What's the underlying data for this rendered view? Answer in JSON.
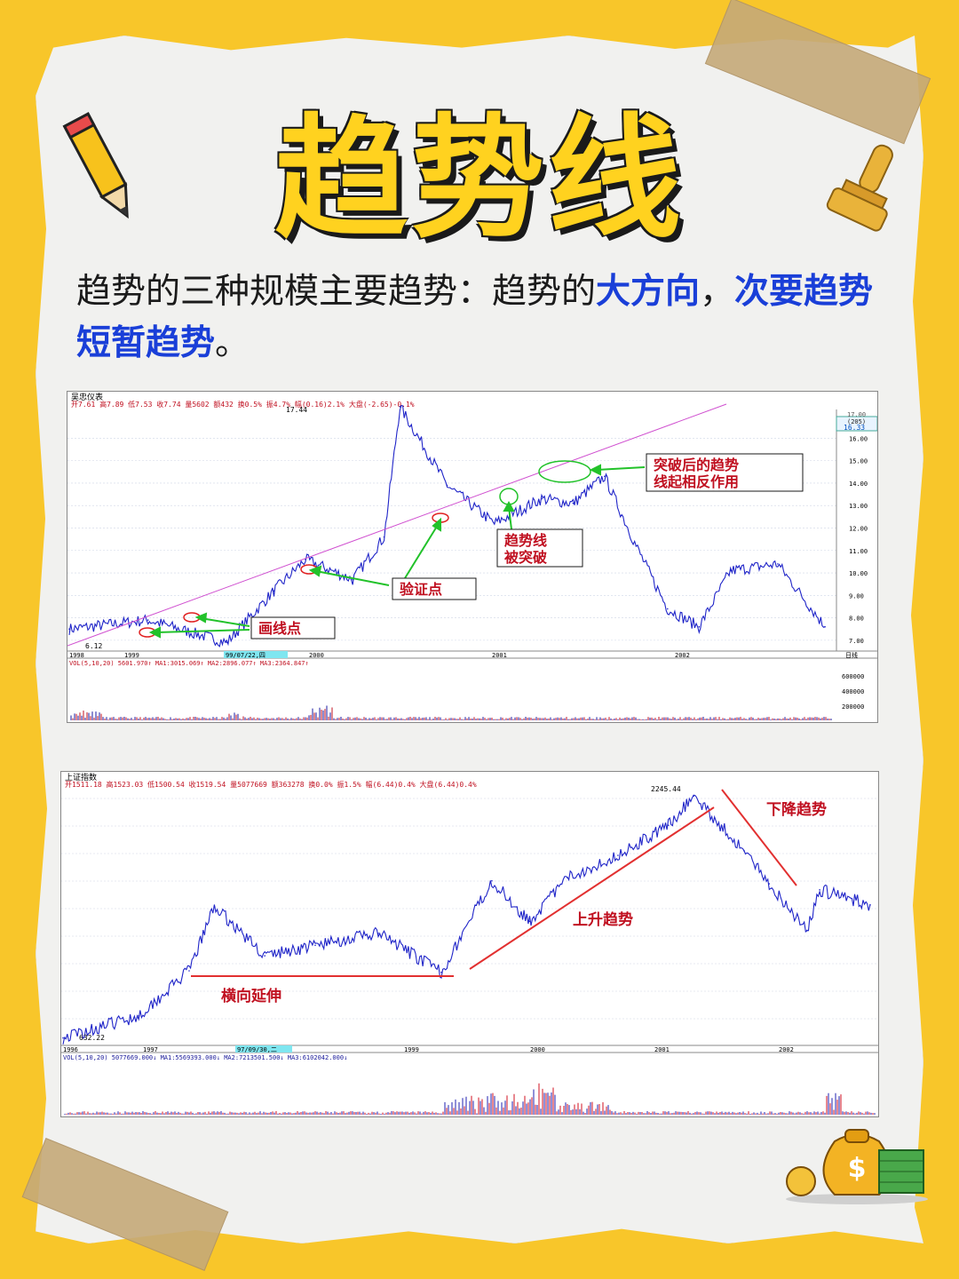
{
  "header": {
    "title": "趋势线"
  },
  "intro": {
    "line1_pre": "趋势的三种规模主要趋势：趋势的",
    "hl1": "大方向",
    "sep": "，",
    "hl2": "次要趋势",
    "hl3": "短暂趋势",
    "end": "。"
  },
  "colors": {
    "background": "#f8c62a",
    "price_line": "#1f24c8",
    "trendline": "#e23030",
    "highlight_text": "#1a3fd8",
    "arrow": "#22c22a"
  },
  "chart_data": [
    {
      "type": "line",
      "name_label": "吴忠仪表",
      "stats": "开7.61 高7.89 低7.53 收7.74 量5602 额432 换0.5% 振4.7% 幅(0.16)2.1% 大盘(-2.65)-0.1%",
      "high_label": "17.44",
      "low_label": "6.12",
      "price_box": [
        "17.00",
        "(205)",
        "16.33"
      ],
      "y_ticks": [
        "16.00",
        "15.00",
        "14.00",
        "13.00",
        "12.00",
        "11.00",
        "10.00",
        "9.00",
        "8.00",
        "7.00"
      ],
      "ylim": [
        6.6,
        17.2
      ],
      "x_labels": [
        "1998",
        "1999",
        "99/07/22,四",
        "2000",
        "2001",
        "2002",
        "日线"
      ],
      "x": [
        "1998",
        "1998.5",
        "1999",
        "1999.3",
        "1999.5",
        "1999.8",
        "2000",
        "2000.1",
        "2000.4",
        "2000.7",
        "2001",
        "2001.2",
        "2001.4",
        "2001.6",
        "2001.8",
        "2002",
        "2002.2",
        "2002.5",
        "2002.8"
      ],
      "values": [
        7.5,
        7.9,
        6.9,
        9.2,
        10.6,
        9.7,
        11.6,
        17.4,
        13.9,
        12.2,
        13.3,
        13.1,
        14.3,
        11.2,
        8.4,
        7.6,
        10.1,
        10.4,
        7.6
      ],
      "annotations": [
        "突破后的趋势线起相反作用",
        "趋势线被突破",
        "验证点",
        "画线点"
      ],
      "volume": {
        "label": "VOL(5,10,20) 5601.970↑ MA1:3015.069↑ MA2:2896.077↑ MA3:2364.847↑",
        "y_ticks": [
          "600000",
          "400000",
          "200000"
        ]
      }
    },
    {
      "type": "line",
      "name_label": "上证指数",
      "stats": "开1511.18 高1523.03 低1500.54 收1519.54 量5077669 额363278 换0.0% 振1.5% 幅(6.44)0.4% 大盘(6.44)0.4%",
      "high_label": "2245.44",
      "low_label": "632.22",
      "x_labels": [
        "1996",
        "1997",
        "97/09/30,二",
        "1999",
        "2000",
        "2001",
        "2002"
      ],
      "x": [
        "1996",
        "1996.6",
        "1997",
        "1997.2",
        "1997.6",
        "1998",
        "1998.5",
        "1999",
        "1999.4",
        "1999.7",
        "2000",
        "2000.4",
        "2000.8",
        "2001",
        "2001.4",
        "2001.6",
        "2001.9",
        "2002",
        "2002.4"
      ],
      "values": [
        632,
        780,
        1080,
        1510,
        1180,
        1250,
        1330,
        1070,
        1680,
        1410,
        1700,
        1850,
        2050,
        2245,
        1880,
        1660,
        1350,
        1620,
        1520
      ],
      "annotations": [
        "下降趋势",
        "上升趋势",
        "横向延伸"
      ],
      "volume": {
        "label": "VOL(5,10,20) 5077669.000↓ MA1:5569393.000↓ MA2:7213501.500↓ MA3:6102042.000↓"
      }
    }
  ]
}
